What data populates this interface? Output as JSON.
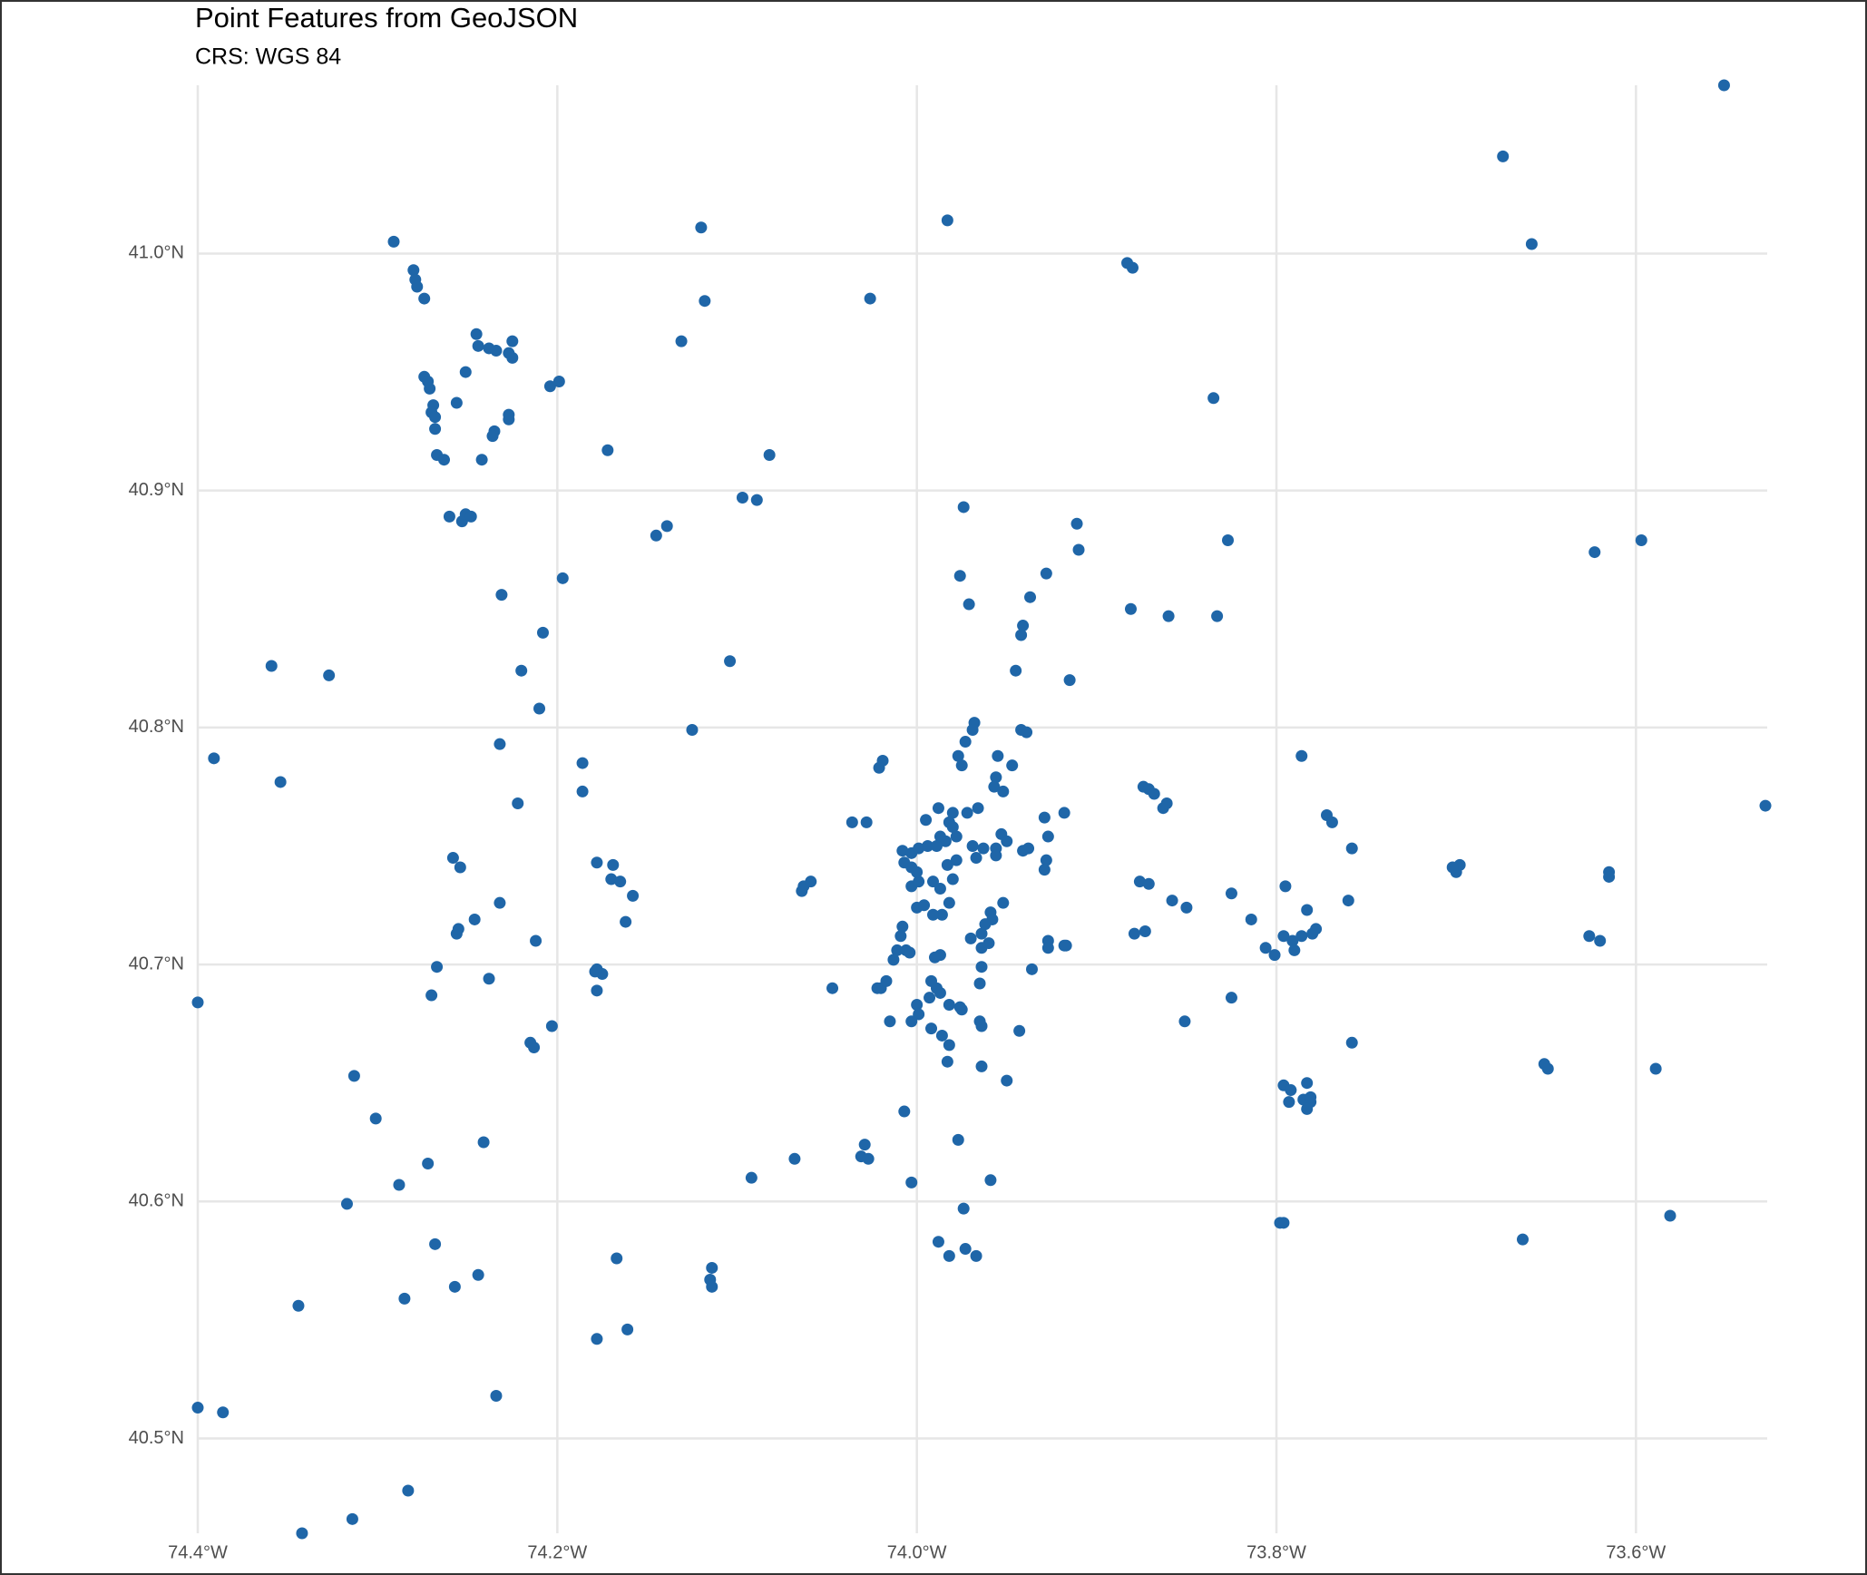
{
  "chart_data": {
    "type": "scatter",
    "title": "Point Features from GeoJSON",
    "subtitle": "CRS: WGS 84",
    "color": "#1f66a8",
    "grid": true,
    "xlim": [
      -74.4,
      -73.527
    ],
    "ylim": [
      40.46,
      41.071
    ],
    "xticks": [
      {
        "value": -74.4,
        "label": "74.4°W"
      },
      {
        "value": -74.2,
        "label": "74.2°W"
      },
      {
        "value": -74.0,
        "label": "74.0°W"
      },
      {
        "value": -73.8,
        "label": "73.8°W"
      },
      {
        "value": -73.6,
        "label": "73.6°W"
      }
    ],
    "yticks": [
      {
        "value": 40.5,
        "label": "40.5°N"
      },
      {
        "value": 40.6,
        "label": "40.6°N"
      },
      {
        "value": 40.7,
        "label": "40.7°N"
      },
      {
        "value": 40.8,
        "label": "40.8°N"
      },
      {
        "value": 40.9,
        "label": "40.9°N"
      },
      {
        "value": 41.0,
        "label": "41.0°N"
      }
    ],
    "x": [
      -73.551,
      -73.674,
      -73.658,
      -73.983,
      -74.12,
      -74.291,
      -74.28,
      -74.279,
      -74.278,
      -74.274,
      -74.118,
      -74.026,
      -73.883,
      -73.88,
      -74.131,
      -74.245,
      -74.244,
      -74.238,
      -74.234,
      -74.225,
      -74.227,
      -74.225,
      -74.251,
      -74.274,
      -74.272,
      -74.271,
      -74.269,
      -74.27,
      -74.268,
      -74.268,
      -74.256,
      -74.227,
      -74.227,
      -74.235,
      -74.236,
      -74.267,
      -74.263,
      -74.242,
      -74.204,
      -74.199,
      -74.172,
      -74.082,
      -74.26,
      -74.253,
      -74.251,
      -74.248,
      -74.097,
      -74.089,
      -74.139,
      -74.145,
      -74.231,
      -74.197,
      -73.974,
      -73.911,
      -73.91,
      -73.835,
      -73.827,
      -73.928,
      -73.976,
      -73.937,
      -73.971,
      -73.941,
      -73.942,
      -73.881,
      -73.86,
      -73.833,
      -73.623,
      -73.597,
      -74.208,
      -74.104,
      -74.359,
      -74.327,
      -74.22,
      -73.945,
      -73.915,
      -74.21,
      -74.125,
      -74.232,
      -74.391,
      -74.354,
      -74.186,
      -74.186,
      -74.222,
      -74.019,
      -74.021,
      -73.968,
      -73.969,
      -73.973,
      -73.977,
      -73.975,
      -73.955,
      -73.947,
      -73.956,
      -73.957,
      -73.952,
      -73.942,
      -73.939,
      -73.786,
      -73.874,
      -73.871,
      -73.868,
      -73.863,
      -73.861,
      -73.772,
      -73.769,
      -73.758,
      -73.528,
      -74.036,
      -74.028,
      -73.988,
      -73.98,
      -73.972,
      -73.966,
      -73.995,
      -73.982,
      -73.98,
      -73.978,
      -73.984,
      -73.987,
      -74.008,
      -74.003,
      -73.999,
      -73.994,
      -73.989,
      -74.007,
      -74.003,
      -74.0,
      -73.991,
      -73.987,
      -73.98,
      -73.983,
      -73.978,
      -74.003,
      -73.999,
      -73.969,
      -73.967,
      -73.963,
      -73.956,
      -73.956,
      -73.982,
      -73.986,
      -73.991,
      -74.0,
      -73.996,
      -74.008,
      -74.009,
      -74.011,
      -74.013,
      -74.006,
      -74.004,
      -73.964,
      -73.964,
      -73.96,
      -73.952,
      -73.959,
      -73.958,
      -73.962,
      -73.97,
      -73.987,
      -73.99,
      -73.964,
      -73.965,
      -73.992,
      -73.989,
      -73.987,
      -73.993,
      -73.982,
      -73.975,
      -73.976,
      -74.0,
      -73.999,
      -74.003,
      -74.015,
      -74.02,
      -74.017,
      -74.022,
      -73.992,
      -73.986,
      -73.982,
      -73.983,
      -73.965,
      -73.964,
      -73.964,
      -73.943,
      -73.95,
      -74.047,
      -74.064,
      -74.063,
      -74.059,
      -73.953,
      -73.95,
      -73.938,
      -73.941,
      -73.929,
      -73.918,
      -73.927,
      -73.928,
      -73.929,
      -73.927,
      -73.927,
      -73.918,
      -73.917,
      -73.936,
      -73.876,
      -73.871,
      -73.858,
      -73.85,
      -73.879,
      -73.873,
      -73.825,
      -73.814,
      -73.806,
      -73.801,
      -73.796,
      -73.791,
      -73.786,
      -73.78,
      -73.778,
      -73.79,
      -73.795,
      -73.783,
      -73.76,
      -73.825,
      -73.851,
      -73.758,
      -73.796,
      -73.792,
      -73.783,
      -73.793,
      -73.785,
      -73.781,
      -73.783,
      -73.781,
      -73.798,
      -73.796,
      -73.7,
      -73.698,
      -73.702,
      -73.615,
      -73.615,
      -73.626,
      -73.62,
      -73.651,
      -73.649,
      -73.589,
      -73.663,
      -73.581,
      -74.007,
      -73.977,
      -74.029,
      -74.031,
      -74.027,
      -74.003,
      -73.959,
      -73.974,
      -73.988,
      -73.973,
      -73.982,
      -73.967,
      -74.068,
      -74.092,
      -74.114,
      -74.115,
      -74.114,
      -74.167,
      -74.161,
      -74.178,
      -74.178,
      -74.169,
      -74.17,
      -74.165,
      -74.158,
      -74.162,
      -74.178,
      -74.175,
      -74.179,
      -74.178,
      -74.258,
      -74.254,
      -74.246,
      -74.256,
      -74.255,
      -74.267,
      -74.27,
      -74.238,
      -74.232,
      -74.212,
      -74.4,
      -74.215,
      -74.213,
      -74.203,
      -74.313,
      -74.301,
      -74.272,
      -74.288,
      -74.317,
      -74.241,
      -74.268,
      -74.257,
      -74.244,
      -74.285,
      -74.344,
      -74.234,
      -74.4,
      -74.386,
      -74.283,
      -74.314,
      -74.342
    ],
    "values": [
      41.071,
      41.041,
      41.004,
      41.014,
      41.011,
      41.005,
      40.993,
      40.989,
      40.986,
      40.981,
      40.98,
      40.981,
      40.996,
      40.994,
      40.963,
      40.966,
      40.961,
      40.96,
      40.959,
      40.963,
      40.958,
      40.956,
      40.95,
      40.948,
      40.946,
      40.943,
      40.936,
      40.933,
      40.931,
      40.926,
      40.937,
      40.932,
      40.93,
      40.925,
      40.923,
      40.915,
      40.913,
      40.913,
      40.944,
      40.946,
      40.917,
      40.915,
      40.889,
      40.887,
      40.89,
      40.889,
      40.897,
      40.896,
      40.885,
      40.881,
      40.856,
      40.863,
      40.893,
      40.886,
      40.875,
      40.939,
      40.879,
      40.865,
      40.864,
      40.855,
      40.852,
      40.843,
      40.839,
      40.85,
      40.847,
      40.847,
      40.874,
      40.879,
      40.84,
      40.828,
      40.826,
      40.822,
      40.824,
      40.824,
      40.82,
      40.808,
      40.799,
      40.793,
      40.787,
      40.777,
      40.785,
      40.773,
      40.768,
      40.786,
      40.783,
      40.802,
      40.799,
      40.794,
      40.788,
      40.784,
      40.788,
      40.784,
      40.779,
      40.775,
      40.773,
      40.799,
      40.798,
      40.788,
      40.775,
      40.774,
      40.772,
      40.766,
      40.768,
      40.763,
      40.76,
      40.749,
      40.767,
      40.76,
      40.76,
      40.766,
      40.764,
      40.764,
      40.766,
      40.761,
      40.76,
      40.758,
      40.754,
      40.752,
      40.754,
      40.748,
      40.747,
      40.749,
      40.75,
      40.75,
      40.743,
      40.741,
      40.739,
      40.735,
      40.732,
      40.736,
      40.742,
      40.744,
      40.733,
      40.735,
      40.75,
      40.745,
      40.749,
      40.749,
      40.746,
      40.726,
      40.721,
      40.721,
      40.724,
      40.725,
      40.716,
      40.712,
      40.706,
      40.702,
      40.706,
      40.705,
      40.707,
      40.713,
      40.709,
      40.726,
      40.722,
      40.719,
      40.717,
      40.711,
      40.704,
      40.703,
      40.699,
      40.692,
      40.693,
      40.69,
      40.688,
      40.686,
      40.683,
      40.681,
      40.682,
      40.683,
      40.679,
      40.676,
      40.676,
      40.69,
      40.693,
      40.69,
      40.673,
      40.67,
      40.666,
      40.659,
      40.676,
      40.674,
      40.657,
      40.672,
      40.651,
      40.69,
      40.731,
      40.733,
      40.735,
      40.755,
      40.752,
      40.749,
      40.748,
      40.762,
      40.764,
      40.754,
      40.744,
      40.74,
      40.71,
      40.707,
      40.708,
      40.708,
      40.698,
      40.735,
      40.734,
      40.727,
      40.724,
      40.713,
      40.714,
      40.73,
      40.719,
      40.707,
      40.704,
      40.712,
      40.71,
      40.712,
      40.713,
      40.715,
      40.706,
      40.733,
      40.723,
      40.727,
      40.686,
      40.676,
      40.667,
      40.649,
      40.647,
      40.65,
      40.642,
      40.643,
      40.642,
      40.639,
      40.644,
      40.591,
      40.591,
      40.739,
      40.742,
      40.741,
      40.739,
      40.737,
      40.712,
      40.71,
      40.658,
      40.656,
      40.656,
      40.584,
      40.594,
      40.638,
      40.626,
      40.624,
      40.619,
      40.618,
      40.608,
      40.609,
      40.597,
      40.583,
      40.58,
      40.577,
      40.577,
      40.618,
      40.61,
      40.572,
      40.567,
      40.564,
      40.576,
      40.546,
      40.542,
      40.743,
      40.742,
      40.736,
      40.735,
      40.729,
      40.718,
      40.698,
      40.696,
      40.697,
      40.689,
      40.745,
      40.741,
      40.719,
      40.713,
      40.715,
      40.699,
      40.687,
      40.694,
      40.726,
      40.71,
      40.684,
      40.667,
      40.665,
      40.674,
      40.653,
      40.635,
      40.616,
      40.607,
      40.599,
      40.625,
      40.582,
      40.564,
      40.569,
      40.559,
      40.556,
      40.518,
      40.513,
      40.511,
      40.478,
      40.466,
      40.46
    ]
  }
}
